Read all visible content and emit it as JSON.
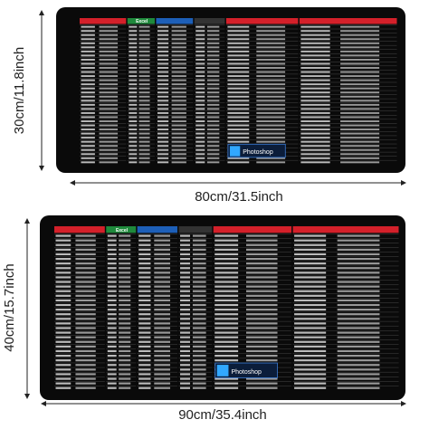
{
  "top_mat": {
    "height_label": "30cm/11.8inch",
    "width_label": "80cm/31.5inch",
    "header": "Excel",
    "logo": "Photoshop"
  },
  "bottom_mat": {
    "height_label": "40cm/15.7inch",
    "width_label": "90cm/35.4inch",
    "header": "Excel",
    "logo": "Photoshop"
  }
}
